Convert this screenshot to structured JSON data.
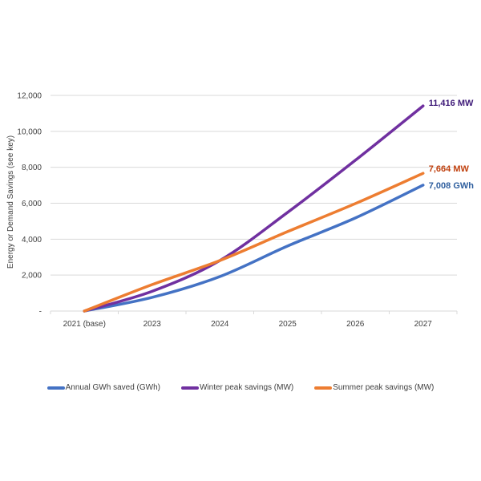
{
  "chart_data": {
    "type": "line",
    "title": "",
    "xlabel": "",
    "ylabel": "Energy or Demand Savings (see key)",
    "categories": [
      "2021 (base)",
      "2023",
      "2024",
      "2025",
      "2026",
      "2027"
    ],
    "ylim": [
      0,
      12000
    ],
    "yticks": [
      0,
      2000,
      4000,
      6000,
      8000,
      10000,
      12000
    ],
    "ytick_labels": [
      "-",
      "2,000",
      "4,000",
      "6,000",
      "8,000",
      "10,000",
      "12,000"
    ],
    "grid": true,
    "legend_position": "bottom",
    "series": [
      {
        "name": "Annual GWh saved (GWh)",
        "color": "#4472C4",
        "label_color": "#2E5E9E",
        "values": [
          0,
          760,
          1920,
          3620,
          5180,
          7008
        ],
        "end_label": "7,008 GWh"
      },
      {
        "name": "Winter peak savings (MW)",
        "color": "#7030A0",
        "label_color": "#3E1A78",
        "values": [
          0,
          1100,
          2810,
          5490,
          8390,
          11416
        ],
        "end_label": "11,416 MW"
      },
      {
        "name": "Summer peak savings (MW)",
        "color": "#ED7D31",
        "label_color": "#C0410F",
        "values": [
          0,
          1470,
          2810,
          4420,
          5980,
          7664
        ],
        "end_label": "7,664 MW"
      }
    ]
  }
}
